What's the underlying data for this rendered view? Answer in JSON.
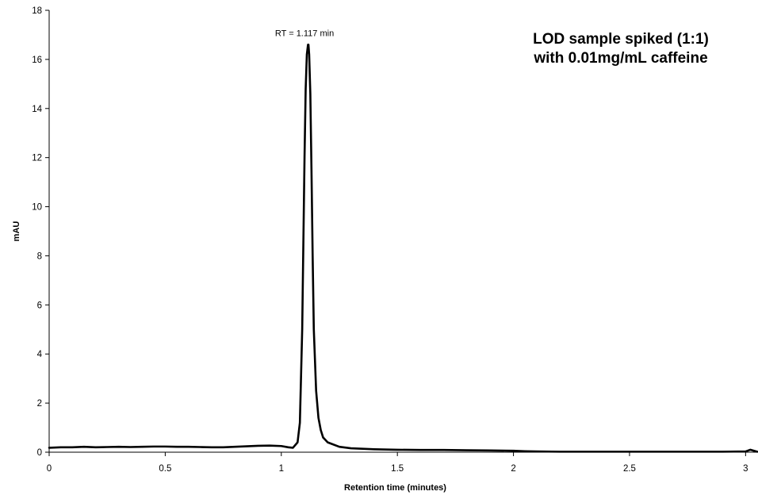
{
  "chart_data": {
    "type": "line",
    "title_lines": [
      "LOD sample spiked (1:1)",
      "with 0.01mg/mL caffeine"
    ],
    "xlabel": "Retention time (minutes)",
    "ylabel": "mAU",
    "xlim": [
      0,
      3.05
    ],
    "ylim": [
      0,
      18
    ],
    "x_ticks": [
      0,
      0.5,
      1,
      1.5,
      2,
      2.5,
      3
    ],
    "x_tick_labels": [
      "0",
      "0.5",
      "1",
      "1.5",
      "2",
      "2.5",
      "3"
    ],
    "y_ticks": [
      0,
      2,
      4,
      6,
      8,
      10,
      12,
      14,
      16,
      18
    ],
    "y_tick_labels": [
      "0",
      "2",
      "4",
      "6",
      "8",
      "10",
      "12",
      "14",
      "16",
      "18"
    ],
    "grid": false,
    "legend": "none",
    "annotation": {
      "text": "RT = 1.117 min",
      "x": 1.117,
      "y": 16.6
    },
    "series": [
      {
        "color": "#000000",
        "x": [
          0,
          0.05,
          0.1,
          0.15,
          0.2,
          0.25,
          0.3,
          0.35,
          0.4,
          0.45,
          0.5,
          0.55,
          0.6,
          0.65,
          0.7,
          0.75,
          0.8,
          0.85,
          0.9,
          0.95,
          1.0,
          1.03,
          1.05,
          1.07,
          1.08,
          1.09,
          1.095,
          1.1,
          1.105,
          1.11,
          1.115,
          1.117,
          1.12,
          1.125,
          1.13,
          1.135,
          1.14,
          1.15,
          1.16,
          1.17,
          1.18,
          1.2,
          1.25,
          1.3,
          1.4,
          1.5,
          1.6,
          1.7,
          1.8,
          1.9,
          2.0,
          2.05,
          2.1,
          2.2,
          2.3,
          2.4,
          2.5,
          2.6,
          2.7,
          2.8,
          2.9,
          3.0,
          3.02,
          3.05
        ],
        "y": [
          0.18,
          0.2,
          0.2,
          0.22,
          0.2,
          0.21,
          0.22,
          0.21,
          0.22,
          0.23,
          0.23,
          0.22,
          0.22,
          0.21,
          0.2,
          0.2,
          0.22,
          0.24,
          0.26,
          0.27,
          0.25,
          0.2,
          0.18,
          0.4,
          1.2,
          5.0,
          8.5,
          12.0,
          14.8,
          16.2,
          16.6,
          16.6,
          16.2,
          14.6,
          11.5,
          8.0,
          5.0,
          2.5,
          1.4,
          0.9,
          0.6,
          0.4,
          0.22,
          0.16,
          0.12,
          0.1,
          0.09,
          0.09,
          0.08,
          0.07,
          0.06,
          0.04,
          0.03,
          0.02,
          0.02,
          0.02,
          0.02,
          0.02,
          0.02,
          0.02,
          0.02,
          0.03,
          0.1,
          0.02
        ]
      }
    ]
  }
}
